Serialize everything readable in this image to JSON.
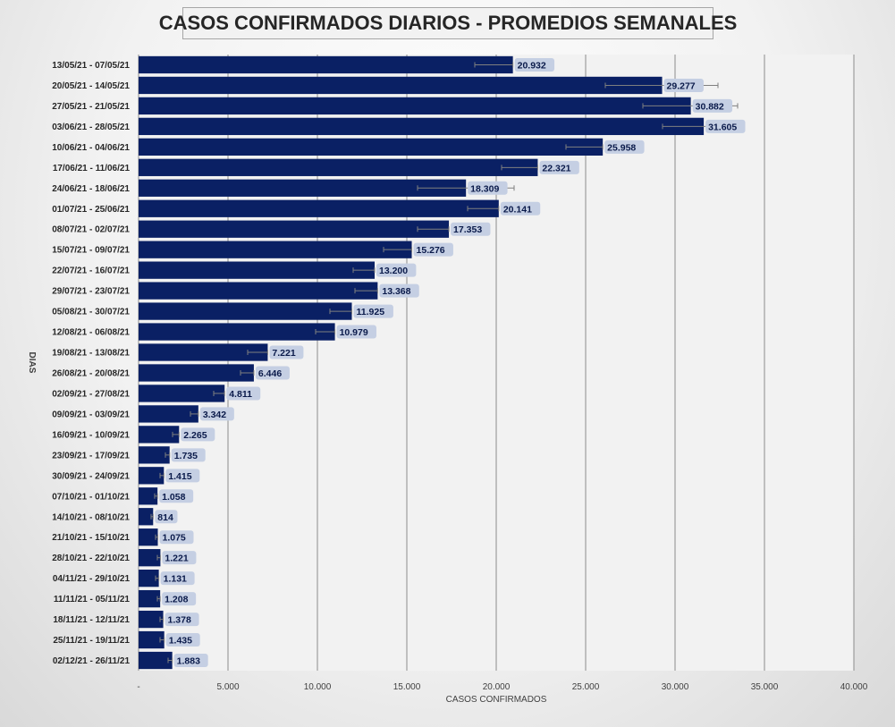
{
  "chart_data": {
    "type": "bar",
    "orientation": "horizontal",
    "title": "CASOS CONFIRMADOS DIARIOS - PROMEDIOS SEMANALES",
    "xlabel": "CASOS CONFIRMADOS",
    "ylabel": "DIAS",
    "xlim": [
      0,
      40000
    ],
    "xticks": [
      "-",
      "5.000",
      "10.000",
      "15.000",
      "20.000",
      "25.000",
      "30.000",
      "35.000",
      "40.000"
    ],
    "grid": "vertical",
    "bar_color": "#0a2064",
    "categories": [
      "13/05/21 - 07/05/21",
      "20/05/21 - 14/05/21",
      "27/05/21 - 21/05/21",
      "03/06/21 - 28/05/21",
      "10/06/21 - 04/06/21",
      "17/06/21 - 11/06/21",
      "24/06/21 - 18/06/21",
      "01/07/21 - 25/06/21",
      "08/07/21 - 02/07/21",
      "15/07/21 - 09/07/21",
      "22/07/21 - 16/07/21",
      "29/07/21 - 23/07/21",
      "05/08/21 - 30/07/21",
      "12/08/21 - 06/08/21",
      "19/08/21 - 13/08/21",
      "26/08/21 - 20/08/21",
      "02/09/21 - 27/08/21",
      "09/09/21 - 03/09/21",
      "16/09/21 - 10/09/21",
      "23/09/21 - 17/09/21",
      "30/09/21 - 24/09/21",
      "07/10/21 - 01/10/21",
      "14/10/21 - 08/10/21",
      "21/10/21 - 15/10/21",
      "28/10/21 - 22/10/21",
      "04/11/21 - 29/10/21",
      "11/11/21 - 05/11/21",
      "18/11/21 - 12/11/21",
      "25/11/21 - 19/11/21",
      "02/12/21 - 26/11/21"
    ],
    "values": [
      20932,
      29277,
      30882,
      31605,
      25958,
      22321,
      18309,
      20141,
      17353,
      15276,
      13200,
      13368,
      11925,
      10979,
      7221,
      6446,
      4811,
      3342,
      2265,
      1735,
      1415,
      1058,
      814,
      1075,
      1221,
      1131,
      1208,
      1378,
      1435,
      1883
    ],
    "labels": [
      "20.932",
      "29.277",
      "30.882",
      "31.605",
      "25.958",
      "22.321",
      "18.309",
      "20.141",
      "17.353",
      "15.276",
      "13.200",
      "13.368",
      "11.925",
      "10.979",
      "7.221",
      "6.446",
      "4.811",
      "3.342",
      "2.265",
      "1.735",
      "1.415",
      "1.058",
      "814",
      "1.075",
      "1.221",
      "1.131",
      "1.208",
      "1.378",
      "1.435",
      "1.883"
    ],
    "error_low": [
      18800,
      26100,
      28200,
      29300,
      23900,
      20300,
      15600,
      18400,
      15600,
      13700,
      12000,
      12100,
      10700,
      9900,
      6100,
      5700,
      4200,
      2900,
      1900,
      1500,
      1200,
      900,
      700,
      950,
      1050,
      950,
      1050,
      1200,
      1200,
      1650
    ],
    "error_high": [
      20932,
      32400,
      33500,
      33800,
      25958,
      22321,
      21000,
      20141,
      17353,
      15276,
      13200,
      13368,
      11925,
      10979,
      7221,
      6446,
      4811,
      3342,
      2265,
      1735,
      1415,
      1058,
      814,
      1075,
      1221,
      1131,
      1208,
      1378,
      1435,
      1883
    ]
  }
}
